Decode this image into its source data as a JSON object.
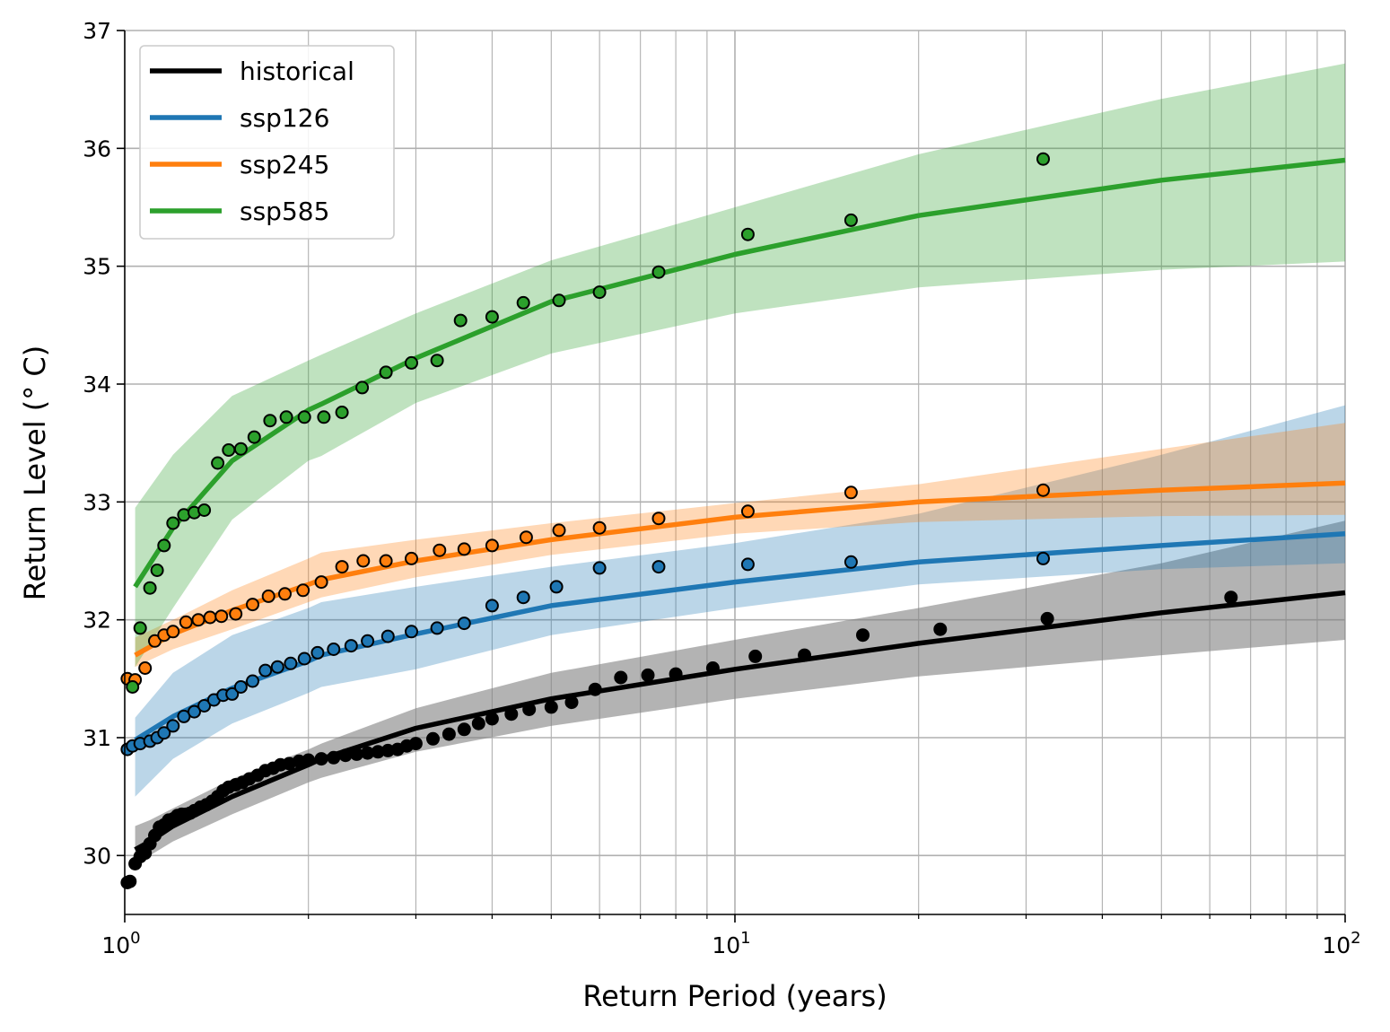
{
  "chart_data": {
    "type": "line",
    "xlabel": "Return Period (years)",
    "ylabel": "Return Level (° C)",
    "xscale": "log",
    "xlim": [
      1,
      100
    ],
    "ylim": [
      29.5,
      37
    ],
    "x_ticks": [
      {
        "value": 1,
        "base": "10",
        "exp": "0"
      },
      {
        "value": 10,
        "base": "10",
        "exp": "1"
      },
      {
        "value": 100,
        "base": "10",
        "exp": "2"
      }
    ],
    "y_ticks": [
      30,
      31,
      32,
      33,
      34,
      35,
      36,
      37
    ],
    "grid": "both (major and minor)",
    "legend_position": "upper-left",
    "series": [
      {
        "name": "historical",
        "color": "#000000",
        "band_color": "#808080",
        "fit": {
          "x": [
            1.04,
            1.1,
            1.2,
            1.5,
            2.0,
            2.1,
            3.0,
            5.0,
            10.0,
            20.0,
            50.0,
            100.0
          ],
          "y": [
            30.05,
            30.12,
            30.25,
            30.5,
            30.77,
            30.82,
            31.08,
            31.33,
            31.58,
            31.8,
            32.06,
            32.23
          ],
          "lower": [
            29.9,
            30.0,
            30.12,
            30.35,
            30.62,
            30.66,
            30.88,
            31.1,
            31.33,
            31.52,
            31.7,
            31.83
          ],
          "upper": [
            30.25,
            30.3,
            30.4,
            30.65,
            30.9,
            30.95,
            31.25,
            31.55,
            31.83,
            32.1,
            32.48,
            32.84
          ]
        },
        "points": {
          "x": [
            1.01,
            1.02,
            1.04,
            1.06,
            1.08,
            1.1,
            1.12,
            1.14,
            1.16,
            1.18,
            1.2,
            1.22,
            1.24,
            1.26,
            1.28,
            1.3,
            1.33,
            1.36,
            1.39,
            1.42,
            1.45,
            1.48,
            1.52,
            1.56,
            1.6,
            1.65,
            1.7,
            1.75,
            1.8,
            1.86,
            1.93,
            2.0,
            2.1,
            2.2,
            2.3,
            2.4,
            2.5,
            2.6,
            2.7,
            2.8,
            2.9,
            3.0,
            3.2,
            3.4,
            3.6,
            3.8,
            4.0,
            4.3,
            4.6,
            5.0,
            5.4,
            5.9,
            6.5,
            7.2,
            8.0,
            9.2,
            10.8,
            13.0,
            16.2,
            21.7,
            32.5,
            65.0
          ],
          "y": [
            29.77,
            29.78,
            29.93,
            29.99,
            30.02,
            30.1,
            30.17,
            30.24,
            30.26,
            30.3,
            30.31,
            30.34,
            30.35,
            30.35,
            30.36,
            30.38,
            30.41,
            30.43,
            30.46,
            30.5,
            30.55,
            30.58,
            30.6,
            30.62,
            30.65,
            30.68,
            30.72,
            30.74,
            30.77,
            30.78,
            30.8,
            30.81,
            30.82,
            30.83,
            30.85,
            30.86,
            30.87,
            30.88,
            30.89,
            30.9,
            30.93,
            30.95,
            30.99,
            31.03,
            31.07,
            31.12,
            31.16,
            31.2,
            31.24,
            31.26,
            31.3,
            31.41,
            31.51,
            31.53,
            31.54,
            31.59,
            31.69,
            31.7,
            31.87,
            31.92,
            32.01,
            32.19
          ]
        }
      },
      {
        "name": "ssp126",
        "color": "#1f77b4",
        "band_color": "#1f77b4",
        "fit": {
          "x": [
            1.04,
            1.2,
            1.5,
            2.0,
            2.1,
            3.0,
            5.0,
            10.0,
            20.0,
            50.0,
            100.0
          ],
          "y": [
            30.98,
            31.18,
            31.42,
            31.65,
            31.7,
            31.88,
            32.12,
            32.32,
            32.49,
            32.63,
            32.73
          ],
          "lower": [
            30.5,
            30.82,
            31.12,
            31.38,
            31.43,
            31.58,
            31.87,
            32.1,
            32.3,
            32.43,
            32.48
          ],
          "upper": [
            31.17,
            31.55,
            31.87,
            32.1,
            32.15,
            32.28,
            32.45,
            32.65,
            32.9,
            33.4,
            33.82
          ]
        },
        "points": {
          "x": [
            1.01,
            1.03,
            1.06,
            1.1,
            1.13,
            1.16,
            1.2,
            1.25,
            1.3,
            1.35,
            1.4,
            1.45,
            1.5,
            1.55,
            1.62,
            1.7,
            1.78,
            1.87,
            1.97,
            2.07,
            2.2,
            2.35,
            2.5,
            2.7,
            2.95,
            3.25,
            3.6,
            4.0,
            4.5,
            5.1,
            6.0,
            7.5,
            10.5,
            15.5,
            32.0
          ],
          "y": [
            30.9,
            30.93,
            30.95,
            30.97,
            31.0,
            31.04,
            31.1,
            31.18,
            31.22,
            31.27,
            31.32,
            31.36,
            31.37,
            31.43,
            31.48,
            31.57,
            31.6,
            31.63,
            31.67,
            31.72,
            31.75,
            31.78,
            31.82,
            31.86,
            31.9,
            31.93,
            31.97,
            32.12,
            32.19,
            32.28,
            32.44,
            32.45,
            32.47,
            32.49,
            32.52
          ]
        }
      },
      {
        "name": "ssp245",
        "color": "#ff7f0e",
        "band_color": "#ff7f0e",
        "fit": {
          "x": [
            1.04,
            1.2,
            1.5,
            2.0,
            2.1,
            3.0,
            5.0,
            10.0,
            20.0,
            50.0,
            100.0
          ],
          "y": [
            31.7,
            31.88,
            32.08,
            32.3,
            32.34,
            32.5,
            32.68,
            32.87,
            33.0,
            33.1,
            33.16
          ],
          "lower": [
            31.6,
            31.75,
            31.92,
            32.15,
            32.19,
            32.36,
            32.55,
            32.73,
            32.83,
            32.88,
            32.89
          ],
          "upper": [
            31.85,
            32.0,
            32.25,
            32.52,
            32.57,
            32.68,
            32.82,
            32.99,
            33.15,
            33.45,
            33.67
          ]
        },
        "points": {
          "x": [
            1.01,
            1.04,
            1.08,
            1.12,
            1.16,
            1.2,
            1.26,
            1.32,
            1.38,
            1.44,
            1.52,
            1.62,
            1.72,
            1.83,
            1.96,
            2.1,
            2.27,
            2.46,
            2.68,
            2.95,
            3.28,
            3.6,
            4.0,
            4.55,
            5.15,
            6.0,
            7.5,
            10.5,
            15.5,
            32.0
          ],
          "y": [
            31.5,
            31.49,
            31.59,
            31.82,
            31.87,
            31.9,
            31.98,
            32.0,
            32.02,
            32.03,
            32.05,
            32.13,
            32.2,
            32.22,
            32.25,
            32.32,
            32.45,
            32.5,
            32.5,
            32.52,
            32.59,
            32.6,
            32.63,
            32.7,
            32.76,
            32.78,
            32.86,
            32.92,
            33.08,
            33.1
          ]
        }
      },
      {
        "name": "ssp585",
        "color": "#2ca02c",
        "band_color": "#2ca02c",
        "fit": {
          "x": [
            1.04,
            1.2,
            1.5,
            2.0,
            2.1,
            3.0,
            5.0,
            10.0,
            20.0,
            50.0,
            100.0
          ],
          "y": [
            32.28,
            32.78,
            33.35,
            33.78,
            33.83,
            34.22,
            34.7,
            35.1,
            35.43,
            35.73,
            35.9
          ],
          "lower": [
            31.6,
            32.1,
            32.85,
            33.35,
            33.39,
            33.84,
            34.26,
            34.6,
            34.82,
            34.97,
            35.04
          ],
          "upper": [
            32.95,
            33.4,
            33.9,
            34.2,
            34.25,
            34.6,
            35.05,
            35.5,
            35.95,
            36.42,
            36.72
          ]
        },
        "points": {
          "x": [
            1.03,
            1.06,
            1.1,
            1.13,
            1.16,
            1.2,
            1.25,
            1.3,
            1.35,
            1.42,
            1.48,
            1.55,
            1.63,
            1.73,
            1.84,
            1.97,
            2.12,
            2.27,
            2.45,
            2.68,
            2.95,
            3.25,
            3.55,
            4.0,
            4.5,
            5.15,
            6.0,
            7.5,
            10.5,
            15.5,
            32.0
          ],
          "y": [
            31.43,
            31.93,
            32.27,
            32.42,
            32.63,
            32.82,
            32.89,
            32.91,
            32.93,
            33.33,
            33.44,
            33.45,
            33.55,
            33.69,
            33.72,
            33.72,
            33.72,
            33.76,
            33.97,
            34.1,
            34.18,
            34.2,
            34.54,
            34.57,
            34.69,
            34.71,
            34.78,
            34.95,
            35.27,
            35.39,
            35.91
          ]
        }
      }
    ]
  }
}
